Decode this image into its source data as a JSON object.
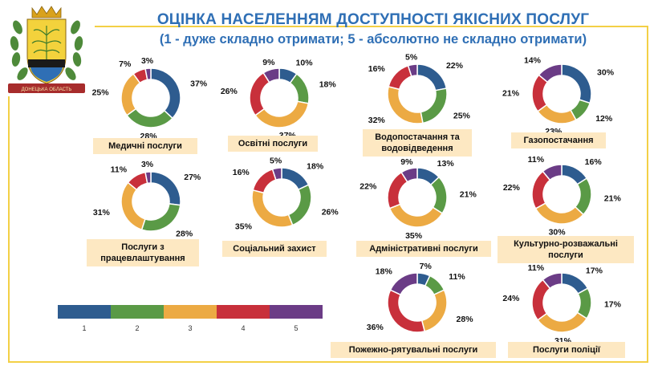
{
  "header": {
    "title_line1": "ОЦІНКА НАСЕЛЕННЯМ ДОСТУПНОСТІ ЯКІСНИХ ПОСЛУГ",
    "title_line2": "(1 - дуже складно отримати; 5 - абсолютно не складно отримати)"
  },
  "emblem": {
    "ribbon_text": "ДОНЕЦЬКА ОБЛАСТЬ"
  },
  "colors": {
    "1": "#2e5c8f",
    "2": "#5a9a46",
    "3": "#ecaa43",
    "4": "#c8303b",
    "5": "#6b3c86",
    "accent": "#2f6fb5",
    "frame": "#f3d046",
    "label_bg": "#fde8c2"
  },
  "legend": {
    "items": [
      "1",
      "2",
      "3",
      "4",
      "5"
    ]
  },
  "chart_data": [
    {
      "type": "pie",
      "title": "Медичні послуги",
      "categories": [
        "1",
        "2",
        "3",
        "4",
        "5"
      ],
      "values": [
        37,
        28,
        25,
        7,
        3
      ]
    },
    {
      "type": "pie",
      "title": "Освітні послуги",
      "categories": [
        "1",
        "2",
        "3",
        "4",
        "5"
      ],
      "values": [
        10,
        18,
        37,
        26,
        9
      ]
    },
    {
      "type": "pie",
      "title": "Водопостачання та водовідведення",
      "categories": [
        "1",
        "2",
        "3",
        "4",
        "5"
      ],
      "values": [
        22,
        25,
        32,
        16,
        5
      ]
    },
    {
      "type": "pie",
      "title": "Газопостачання",
      "categories": [
        "1",
        "2",
        "3",
        "4",
        "5"
      ],
      "values": [
        30,
        12,
        23,
        21,
        14
      ]
    },
    {
      "type": "pie",
      "title": "Послуги з працевлаштування",
      "categories": [
        "1",
        "2",
        "3",
        "4",
        "5"
      ],
      "values": [
        27,
        28,
        31,
        11,
        3
      ]
    },
    {
      "type": "pie",
      "title": "Соціальний захист",
      "categories": [
        "1",
        "2",
        "3",
        "4",
        "5"
      ],
      "values": [
        18,
        26,
        35,
        16,
        5
      ]
    },
    {
      "type": "pie",
      "title": "Адміністративні послуги",
      "categories": [
        "1",
        "2",
        "3",
        "4",
        "5"
      ],
      "values": [
        13,
        21,
        35,
        22,
        9
      ]
    },
    {
      "type": "pie",
      "title": "Культурно-розважальні послуги",
      "categories": [
        "1",
        "2",
        "3",
        "4",
        "5"
      ],
      "values": [
        16,
        21,
        30,
        22,
        11
      ]
    },
    {
      "type": "pie",
      "title": "Пожежно-рятувальні послуги",
      "categories": [
        "1",
        "2",
        "3",
        "4",
        "5"
      ],
      "values": [
        7,
        11,
        28,
        36,
        18
      ]
    },
    {
      "type": "pie",
      "title": "Послуги поліції",
      "categories": [
        "1",
        "2",
        "3",
        "4",
        "5"
      ],
      "values": [
        17,
        17,
        31,
        24,
        11
      ]
    }
  ]
}
